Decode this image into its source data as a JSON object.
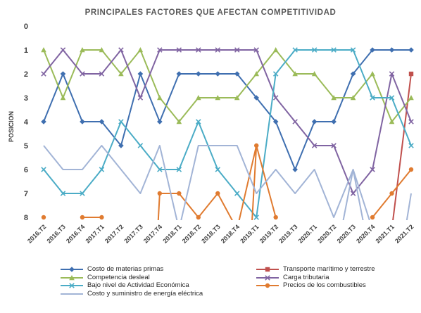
{
  "chart_data": {
    "type": "line",
    "title": "PRINCIPALES FACTORES QUE AFECTAN COMPETITIVIDAD",
    "ylabel": "POSICION",
    "ylim": [
      0,
      8
    ],
    "y_inverted": true,
    "y_ticks": [
      "0",
      "1",
      "2",
      "3",
      "4",
      "5",
      "6",
      "7",
      "8"
    ],
    "grid": false,
    "legend_position": "bottom",
    "categories": [
      "2016.T2",
      "2016.T3",
      "2016.T4",
      "2017.T1",
      "2017.T2",
      "2017.T3",
      "2017.T4",
      "2018.T1",
      "2018.T2",
      "2018.T3",
      "2018.T4",
      "2019.T1",
      "2019.T2",
      "2019.T3",
      "2020.T1",
      "2020.T2",
      "2020.T3",
      "2020.T4",
      "2021.T1",
      "2021.T2"
    ],
    "x_positions": [
      0,
      1,
      2,
      3,
      4,
      5,
      6,
      7,
      8,
      9,
      10,
      11,
      12,
      13,
      14,
      15,
      16,
      17,
      18,
      19
    ],
    "series": [
      {
        "name": "Costo de materias primas",
        "color": "#3F6FB0",
        "marker": "diamond",
        "values": [
          4,
          2,
          4,
          4,
          5,
          2,
          4,
          2,
          2,
          2,
          2,
          3,
          4,
          6,
          4,
          4,
          2,
          1,
          1,
          1
        ]
      },
      {
        "name": "Transporte marítimo y terrestre",
        "color": "#C0504D",
        "marker": "square",
        "values": [
          null,
          null,
          null,
          null,
          null,
          null,
          null,
          null,
          null,
          null,
          null,
          null,
          null,
          null,
          null,
          null,
          null,
          null,
          8.5,
          2
        ]
      },
      {
        "name": "Competencia desleal",
        "color": "#9BBB59",
        "marker": "triangle",
        "values": [
          1,
          3,
          1,
          1,
          2,
          1,
          3,
          4,
          3,
          3,
          3,
          2,
          1,
          2,
          2,
          3,
          3,
          2,
          4,
          3
        ]
      },
      {
        "name": "Carga tributaria",
        "color": "#8064A2",
        "marker": "x",
        "values": [
          2,
          1,
          2,
          2,
          1,
          3,
          1,
          1,
          1,
          1,
          1,
          1,
          3,
          4,
          5,
          5,
          7,
          6,
          2,
          4
        ]
      },
      {
        "name": "Bajo nivel de Actividad Económica",
        "color": "#4BACC6",
        "marker": "x",
        "values": [
          6,
          7,
          7,
          6,
          4,
          5,
          6,
          6,
          4,
          6,
          7,
          8,
          2,
          1,
          1,
          1,
          1,
          3,
          3,
          5
        ]
      },
      {
        "name": "Precios de los combustibles",
        "color": "#E07B30",
        "marker": "circle",
        "values": [
          8,
          null,
          8,
          8,
          null,
          null,
          7,
          7,
          8,
          7,
          8.5,
          5,
          8,
          null,
          null,
          null,
          null,
          8,
          7,
          6
        ]
      },
      {
        "name": "Costo y suministro de energía eléctrica",
        "color": "#A2B4D6",
        "marker": "line",
        "values": [
          5,
          6,
          6,
          5,
          6,
          7,
          5,
          8.5,
          5,
          5,
          5,
          7,
          6,
          7,
          6,
          8,
          6,
          8.5,
          null,
          7
        ]
      }
    ],
    "extra_segments": [
      {
        "series": "Precios de los combustibles",
        "from": [
          5.9,
          8.5
        ],
        "to": [
          6,
          7
        ]
      },
      {
        "series": "Precios de los combustibles",
        "from": [
          10.75,
          8.5
        ],
        "to": [
          11,
          5
        ]
      },
      {
        "series": "Costo y suministro de energía eléctrica",
        "from": [
          15.4,
          8.5
        ],
        "to": [
          16,
          6
        ]
      },
      {
        "series": "Costo y suministro de energía eléctrica",
        "from": [
          16,
          6
        ],
        "to": [
          16.6,
          8.5
        ]
      },
      {
        "series": "Costo y suministro de energía eléctrica",
        "from": [
          18.7,
          8.5
        ],
        "to": [
          19,
          7
        ]
      }
    ]
  }
}
